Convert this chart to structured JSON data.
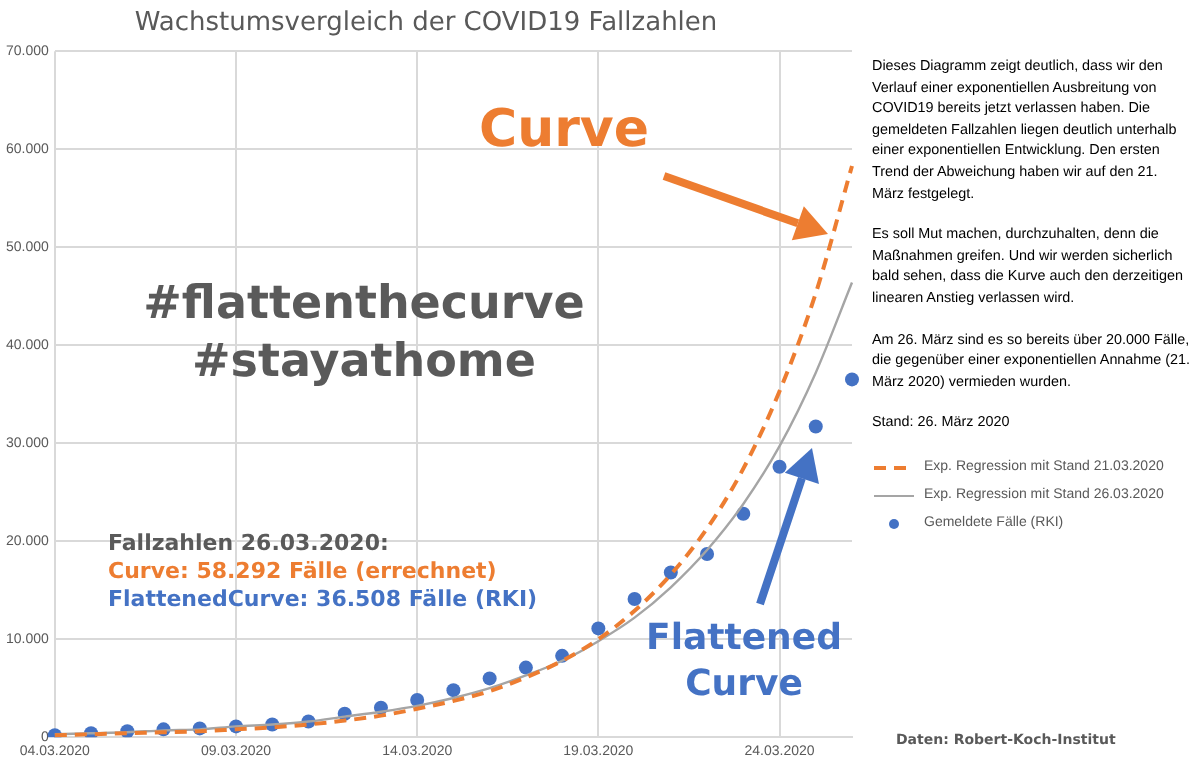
{
  "chart_data": {
    "type": "line",
    "title": "Wachstumsvergleich der COVID19 Fallzahlen",
    "categories": [
      "04.03.2020",
      null,
      null,
      null,
      null,
      "09.03.2020",
      null,
      null,
      null,
      null,
      "14.03.2020",
      null,
      null,
      null,
      null,
      "19.03.2020",
      null,
      null,
      null,
      null,
      "24.03.2020",
      null,
      null
    ],
    "series": [
      {
        "name": "Exp. Regression mit Stand 21.03.2020",
        "type": "line",
        "color": "#ed7d31",
        "line_style": "dashed",
        "marker": "none",
        "values": [
          200,
          300,
          400,
          500,
          600,
          800,
          1000,
          1300,
          1700,
          2200,
          2900,
          3700,
          4700,
          6100,
          7800,
          10000,
          12900,
          16600,
          21300,
          27400,
          35300,
          45300,
          58292
        ]
      },
      {
        "name": "Exp. Regression mit Stand 26.03.2020",
        "type": "line",
        "color": "#a5a5a5",
        "line_style": "solid",
        "marker": "none",
        "values": [
          300,
          400,
          500,
          700,
          800,
          1100,
          1300,
          1600,
          2100,
          2600,
          3200,
          4000,
          5000,
          6300,
          7800,
          9800,
          12200,
          15300,
          19100,
          23800,
          29700,
          37200,
          46400
        ]
      },
      {
        "name": "Gemeldete Fälle (RKI)",
        "type": "scatter",
        "color": "#4472c4",
        "marker": "circle",
        "values": [
          200,
          400,
          600,
          800,
          900,
          1100,
          1300,
          1600,
          2400,
          3000,
          3800,
          4800,
          6000,
          7100,
          8300,
          11100,
          14100,
          16800,
          18700,
          22800,
          27600,
          31700,
          36508
        ]
      }
    ],
    "ylim": [
      0,
      70000
    ],
    "yticks": [
      {
        "value": 0,
        "label": "0"
      },
      {
        "value": 10000,
        "label": "10.000"
      },
      {
        "value": 20000,
        "label": "20.000"
      },
      {
        "value": 30000,
        "label": "30.000"
      },
      {
        "value": 40000,
        "label": "40.000"
      },
      {
        "value": 50000,
        "label": "50.000"
      },
      {
        "value": 60000,
        "label": "60.000"
      },
      {
        "value": 70000,
        "label": "70.000"
      }
    ],
    "grid": true,
    "legend": "right",
    "annotations": [
      "Curve",
      "#flattenthecurve",
      "#stayathome",
      "Fallzahlen 26.03.2020:",
      "Curve: 58.292 Fälle (errechnet)",
      "FlattenedCurve: 36.508 Fälle (RKI)",
      "Flattened",
      "Curve",
      "Dieses Diagramm zeigt deutlich, dass wir den Verlauf einer exponentiellen Ausbreitung von COVID19 bereits jetzt verlassen haben.  Die gemeldeten Fallzahlen liegen deutlich unterhalb einer exponentiellen Entwicklung. Den ersten Trend der Abweichung haben wir auf den 21. März festgelegt.",
      "Es soll Mut machen, durchzuhalten, denn die Maßnahmen greifen. Und wir werden sicherlich bald sehen, dass die Kurve auch den derzeitigen linearen Anstieg verlassen wird.",
      "Am 26. März sind es so bereits über 20.000 Fälle, die gegenüber einer exponentiellen Annahme (21. März 2020) vermieden wurden.",
      "Stand: 26. März 2020",
      "Daten: Robert-Koch-Institut"
    ]
  }
}
